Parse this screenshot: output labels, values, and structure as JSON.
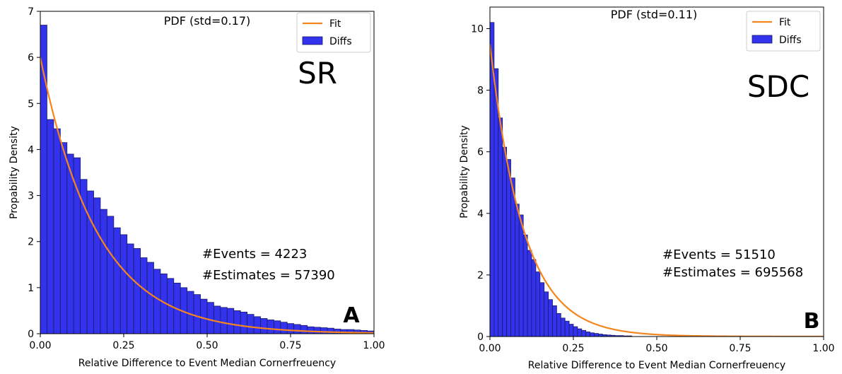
{
  "chart_data": [
    {
      "type": "bar",
      "title": "PDF (std=0.17)",
      "xlabel": "Relative Difference to Event Median Cornerfreuency",
      "ylabel": "Propability Density",
      "xlim": [
        0,
        1
      ],
      "ylim": [
        0,
        7
      ],
      "x_ticks": [
        "0.00",
        "0.25",
        "0.50",
        "0.75",
        "1.00"
      ],
      "y_ticks": [
        "0",
        "1",
        "2",
        "3",
        "4",
        "5",
        "6",
        "7"
      ],
      "legend": {
        "placement": "top-right",
        "entries": [
          "Fit",
          "Diffs"
        ]
      },
      "series": [
        {
          "name": "Diffs",
          "bin_width": 0.02,
          "values": [
            6.7,
            4.65,
            4.45,
            4.15,
            3.9,
            3.82,
            3.35,
            3.1,
            2.95,
            2.7,
            2.55,
            2.3,
            2.15,
            1.95,
            1.85,
            1.65,
            1.55,
            1.4,
            1.3,
            1.2,
            1.1,
            1.0,
            0.92,
            0.85,
            0.75,
            0.68,
            0.6,
            0.57,
            0.55,
            0.5,
            0.47,
            0.42,
            0.37,
            0.33,
            0.3,
            0.28,
            0.25,
            0.22,
            0.2,
            0.18,
            0.15,
            0.14,
            0.13,
            0.12,
            0.1,
            0.09,
            0.09,
            0.08,
            0.07,
            0.06,
            0.06,
            0.05,
            0.05,
            0.04,
            0.04,
            0.04,
            0.03,
            0.03,
            0.03,
            0.03,
            0.03,
            0.04,
            0.03,
            0.03,
            0.03,
            0.03,
            0.02,
            0.02,
            0.02,
            0.02
          ]
        },
        {
          "name": "Fit",
          "color": "#f5851c",
          "function": "exponential",
          "y0": 6.0,
          "scale": 0.17
        }
      ],
      "annotations": [
        "#Events = 4223",
        "#Estimates = 57390"
      ],
      "label_text": "SR",
      "panel_letter": "A"
    },
    {
      "type": "bar",
      "title": "PDF (std=0.11)",
      "xlabel": "Relative Difference to Event Median Cornerfreuency",
      "ylabel": "Propability Density",
      "xlim": [
        0,
        1
      ],
      "ylim": [
        0,
        10.7
      ],
      "x_ticks": [
        "0.00",
        "0.25",
        "0.50",
        "0.75",
        "1.00"
      ],
      "y_ticks": [
        "0",
        "2",
        "4",
        "6",
        "8",
        "10"
      ],
      "legend": {
        "placement": "top-right",
        "entries": [
          "Fit",
          "Diffs"
        ]
      },
      "series": [
        {
          "name": "Diffs",
          "bin_width": 0.0125,
          "values": [
            10.2,
            8.7,
            7.1,
            6.15,
            5.75,
            5.15,
            4.3,
            3.95,
            3.3,
            2.8,
            2.5,
            2.1,
            1.75,
            1.45,
            1.2,
            1.0,
            0.75,
            0.6,
            0.5,
            0.4,
            0.32,
            0.25,
            0.2,
            0.15,
            0.12,
            0.1,
            0.08,
            0.06,
            0.05,
            0.04,
            0.03,
            0.03,
            0.02,
            0.02
          ]
        },
        {
          "name": "Fit",
          "color": "#f5851c",
          "function": "exponential",
          "y0": 9.5,
          "scale": 0.1
        }
      ],
      "annotations": [
        "#Events = 51510",
        "#Estimates = 695568"
      ],
      "label_text": "SDC",
      "panel_letter": "B"
    }
  ],
  "colors": {
    "bar_fill": "#3333ee",
    "bar_edge": "#1a1a66",
    "fit": "#f5851c"
  }
}
